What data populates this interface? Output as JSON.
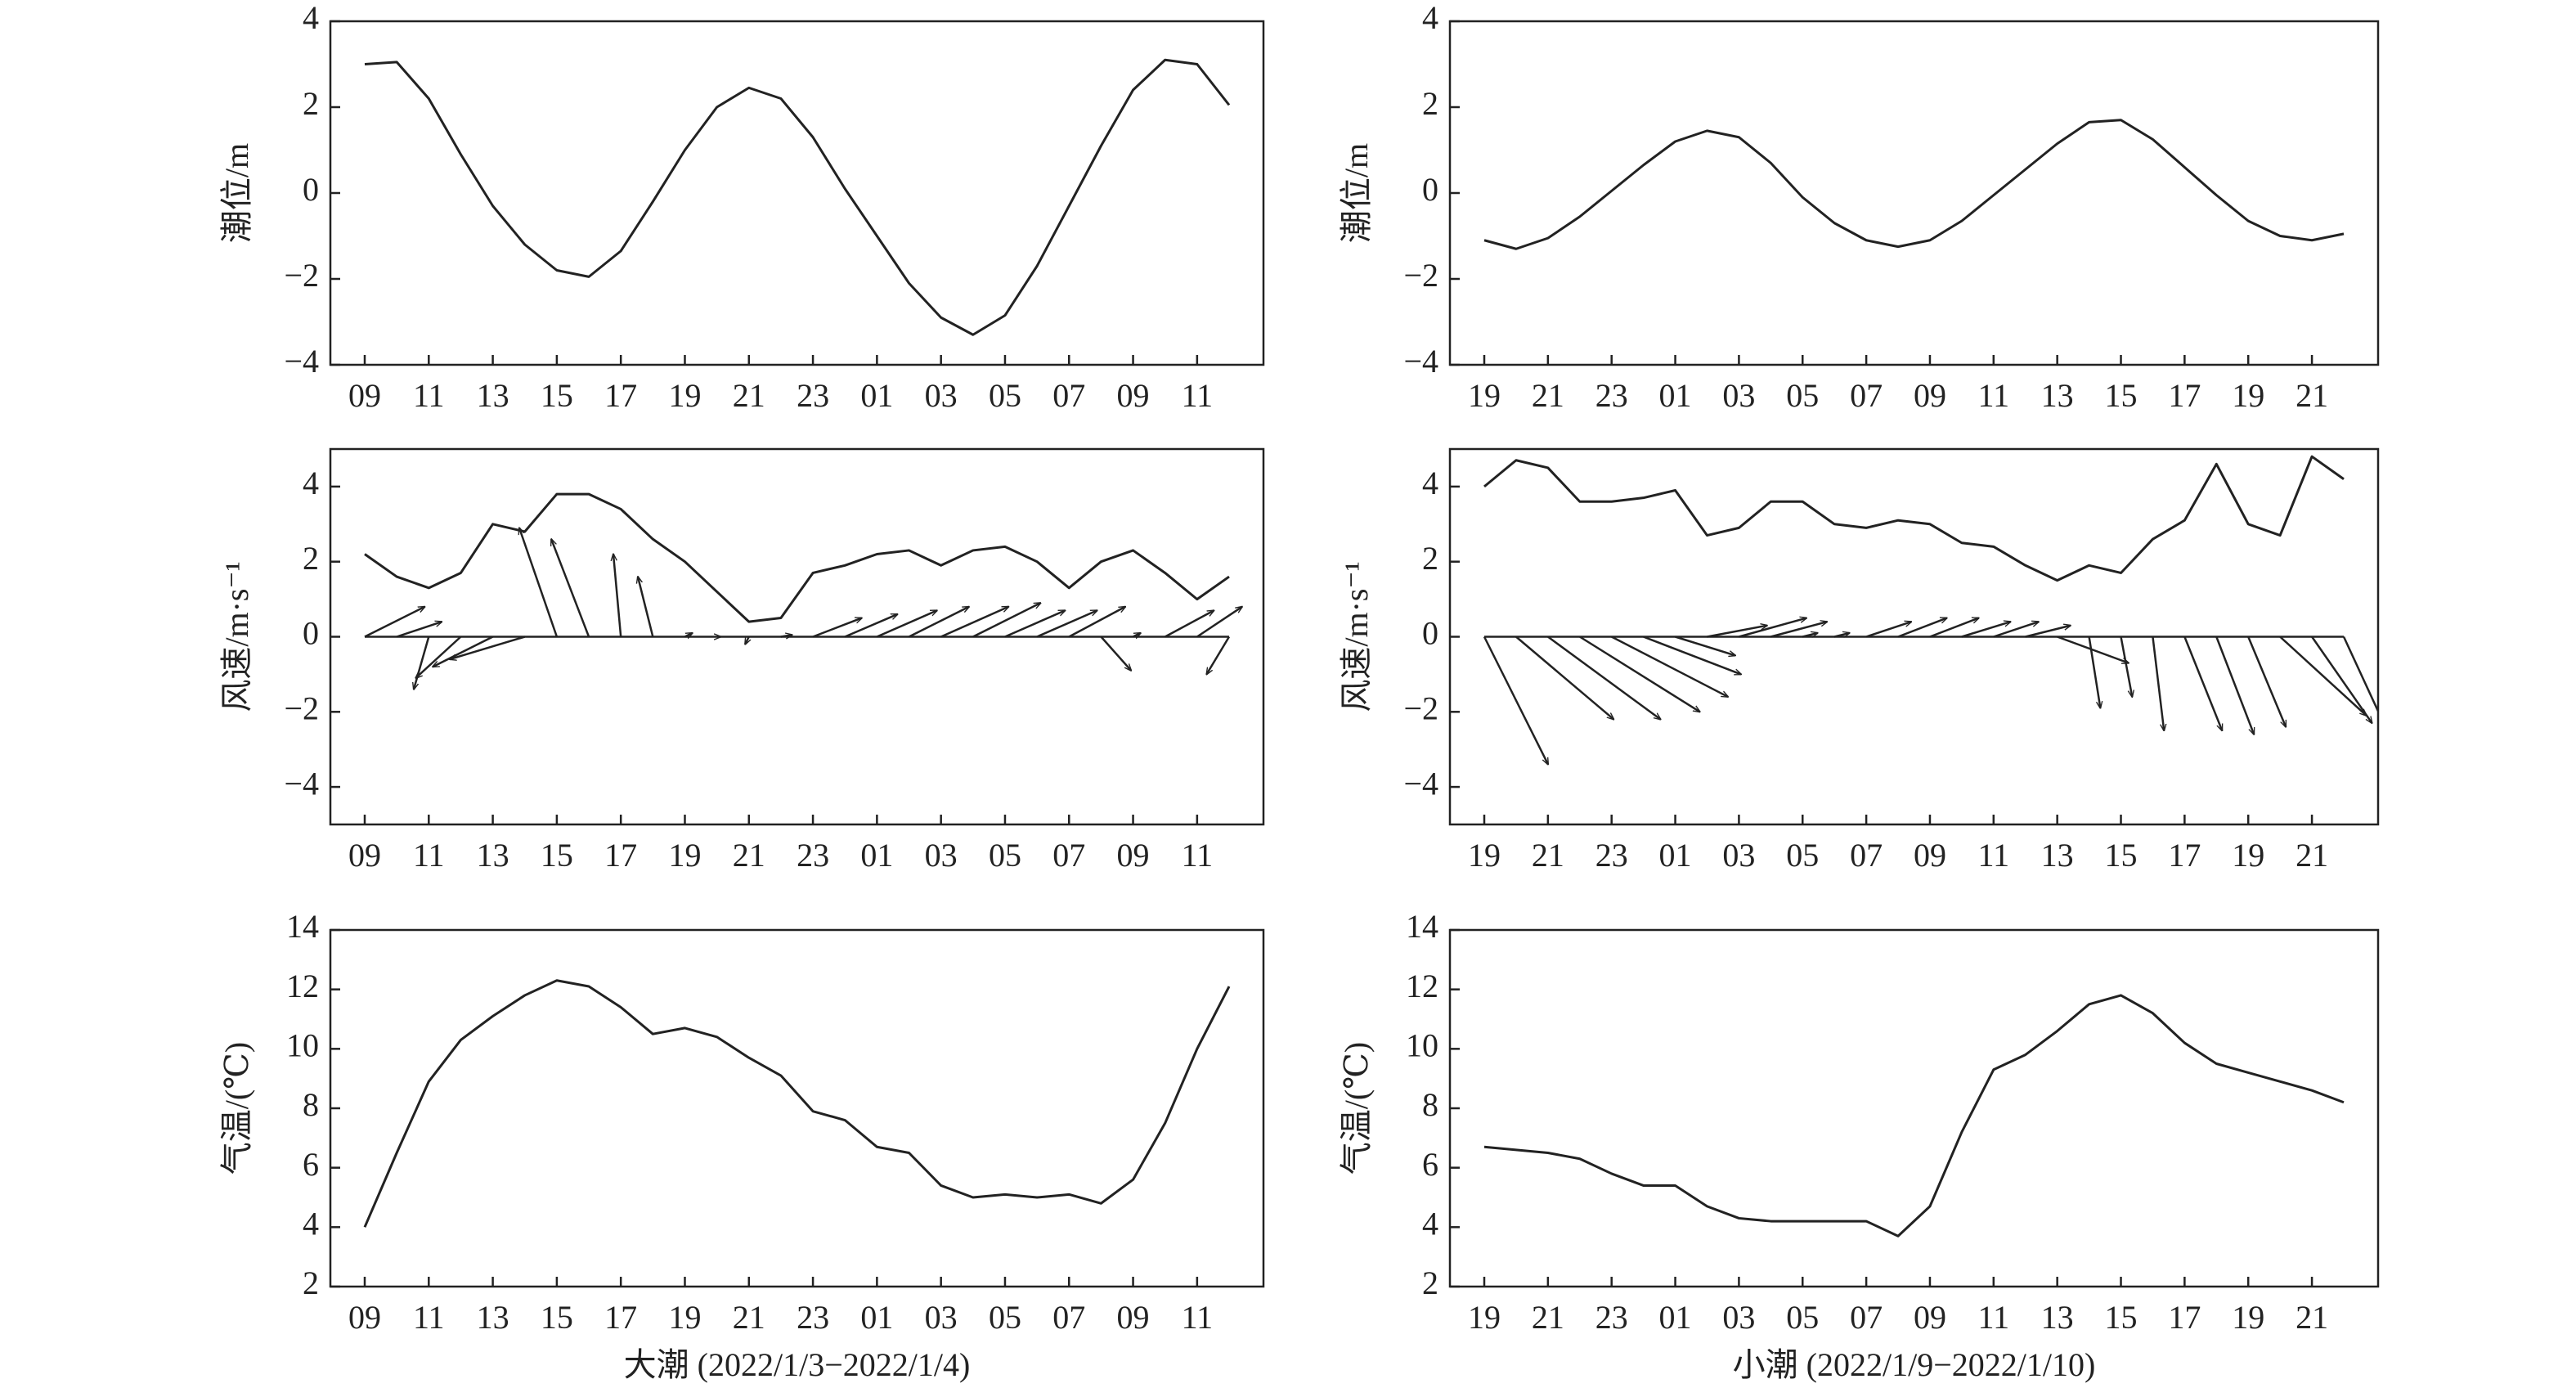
{
  "chart_data": [
    {
      "type": "line",
      "ylabel": "潮位/m",
      "categories": [
        "09",
        null,
        "11",
        null,
        "13",
        null,
        "15",
        null,
        "17",
        null,
        "19",
        null,
        "21",
        null,
        "23",
        null,
        "01",
        null,
        "03",
        null,
        "05",
        null,
        "07",
        null,
        "09",
        null,
        "11",
        null
      ],
      "values": [
        3.0,
        3.05,
        2.2,
        0.9,
        -0.3,
        -1.2,
        -1.8,
        -1.95,
        -1.35,
        -0.2,
        1.0,
        2.0,
        2.45,
        2.2,
        1.3,
        0.1,
        -1.0,
        -2.1,
        -2.9,
        -3.3,
        -2.85,
        -1.7,
        -0.3,
        1.1,
        2.4,
        3.1,
        3.0,
        2.05
      ],
      "color": "#222222",
      "ylim": [
        -4,
        4
      ],
      "yticks": [
        {
          "value": -4,
          "label": "−4"
        },
        {
          "value": -2,
          "label": "−2"
        },
        0,
        2,
        4
      ]
    },
    {
      "type": "line",
      "ylabel": "潮位/m",
      "categories": [
        "19",
        null,
        "21",
        null,
        "23",
        null,
        "01",
        null,
        "03",
        null,
        "05",
        null,
        "07",
        null,
        "09",
        null,
        "11",
        null,
        "13",
        null,
        "15",
        null,
        "17",
        null,
        "19",
        null,
        "21",
        null
      ],
      "values": [
        -1.1,
        -1.3,
        -1.05,
        -0.55,
        0.05,
        0.65,
        1.2,
        1.45,
        1.3,
        0.7,
        -0.1,
        -0.7,
        -1.1,
        -1.25,
        -1.1,
        -0.65,
        -0.05,
        0.55,
        1.15,
        1.65,
        1.7,
        1.25,
        0.6,
        -0.05,
        -0.65,
        -1.0,
        -1.1,
        -0.95
      ],
      "color": "#222222",
      "ylim": [
        -4,
        4
      ],
      "yticks": [
        {
          "value": -4,
          "label": "−4"
        },
        {
          "value": -2,
          "label": "−2"
        },
        0,
        2,
        4
      ]
    },
    {
      "type": "wind",
      "ylabel": "风速/m·s⁻¹",
      "categories": [
        "09",
        null,
        "11",
        null,
        "13",
        null,
        "15",
        null,
        "17",
        null,
        "19",
        null,
        "21",
        null,
        "23",
        null,
        "01",
        null,
        "03",
        null,
        "05",
        null,
        "07",
        null,
        "09",
        null,
        "11",
        null
      ],
      "values": [
        2.2,
        1.6,
        1.3,
        1.7,
        3.0,
        2.8,
        3.8,
        3.8,
        3.4,
        2.6,
        2.0,
        1.2,
        0.4,
        0.5,
        1.7,
        1.9,
        2.2,
        2.3,
        1.9,
        2.3,
        2.4,
        2.0,
        1.3,
        2.0,
        2.3,
        1.7,
        1.0,
        1.6
      ],
      "vectors": {
        "u": [
          1.6,
          1.2,
          -0.4,
          -1.2,
          -1.6,
          -2.0,
          -1.0,
          -1.0,
          -0.2,
          -0.4,
          0.2,
          0.1,
          -0.1,
          0.3,
          1.3,
          1.4,
          1.6,
          1.6,
          1.8,
          1.8,
          1.6,
          1.6,
          1.5,
          0.8,
          0.2,
          1.3,
          1.2,
          -0.6
        ],
        "v": [
          0.8,
          0.4,
          -1.4,
          -1.1,
          -0.8,
          -0.6,
          2.9,
          2.6,
          2.2,
          1.6,
          0.1,
          0.0,
          -0.2,
          0.05,
          0.5,
          0.6,
          0.7,
          0.8,
          0.8,
          0.9,
          0.7,
          0.7,
          0.8,
          -0.9,
          0.1,
          0.7,
          0.8,
          -1.0
        ]
      },
      "color": "#222222",
      "ylim": [
        -5,
        5
      ],
      "yticks": [
        {
          "value": -4,
          "label": "−4"
        },
        {
          "value": -2,
          "label": "−2"
        },
        0,
        2,
        4
      ]
    },
    {
      "type": "wind",
      "ylabel": "风速/m·s⁻¹",
      "categories": [
        "19",
        null,
        "21",
        null,
        "23",
        null,
        "01",
        null,
        "03",
        null,
        "05",
        null,
        "07",
        null,
        "09",
        null,
        "11",
        null,
        "13",
        null,
        "15",
        null,
        "17",
        null,
        "19",
        null,
        "21",
        null
      ],
      "values": [
        4.0,
        4.7,
        4.5,
        3.6,
        3.6,
        3.7,
        3.9,
        2.7,
        2.9,
        3.6,
        3.6,
        3.0,
        2.9,
        3.1,
        3.0,
        2.5,
        2.4,
        1.9,
        1.5,
        1.9,
        1.7,
        2.6,
        3.1,
        4.6,
        3.0,
        2.7,
        4.8,
        4.2
      ],
      "vectors": {
        "u": [
          1.7,
          2.6,
          3.0,
          3.2,
          3.1,
          2.6,
          1.6,
          1.6,
          1.8,
          1.5,
          0.4,
          0.4,
          1.2,
          1.3,
          1.3,
          1.3,
          1.2,
          1.2,
          1.9,
          0.3,
          0.3,
          0.3,
          1.0,
          1.0,
          1.0,
          2.3,
          1.6,
          1.2
        ],
        "v": [
          -3.4,
          -2.2,
          -2.2,
          -2.0,
          -1.6,
          -1.0,
          -0.5,
          0.3,
          0.5,
          0.4,
          0.1,
          0.1,
          0.4,
          0.5,
          0.5,
          0.4,
          0.4,
          0.3,
          -0.7,
          -1.9,
          -1.6,
          -2.5,
          -2.5,
          -2.6,
          -2.4,
          -2.1,
          -2.3,
          -2.6
        ]
      },
      "color": "#222222",
      "ylim": [
        -5,
        5
      ],
      "yticks": [
        {
          "value": -4,
          "label": "−4"
        },
        {
          "value": -2,
          "label": "−2"
        },
        0,
        2,
        4
      ]
    },
    {
      "type": "line",
      "ylabel": "气温/(℃)",
      "xlabel": "大潮 (2022/1/3−2022/1/4)",
      "categories": [
        "09",
        null,
        "11",
        null,
        "13",
        null,
        "15",
        null,
        "17",
        null,
        "19",
        null,
        "21",
        null,
        "23",
        null,
        "01",
        null,
        "03",
        null,
        "05",
        null,
        "07",
        null,
        "09",
        null,
        "11",
        null
      ],
      "values": [
        4.0,
        6.5,
        8.9,
        10.3,
        11.1,
        11.8,
        12.3,
        12.1,
        11.4,
        10.5,
        10.7,
        10.4,
        9.7,
        9.1,
        7.9,
        7.6,
        6.7,
        6.5,
        5.4,
        5.0,
        5.1,
        5.0,
        5.1,
        4.8,
        5.6,
        7.5,
        10.0,
        12.1
      ],
      "color": "#222222",
      "ylim": [
        2,
        14
      ],
      "yticks": [
        2,
        4,
        6,
        8,
        10,
        12,
        14
      ]
    },
    {
      "type": "line",
      "ylabel": "气温/(℃)",
      "xlabel": "小潮 (2022/1/9−2022/1/10)",
      "categories": [
        "19",
        null,
        "21",
        null,
        "23",
        null,
        "01",
        null,
        "03",
        null,
        "05",
        null,
        "07",
        null,
        "09",
        null,
        "11",
        null,
        "13",
        null,
        "15",
        null,
        "17",
        null,
        "19",
        null,
        "21",
        null
      ],
      "values": [
        6.7,
        6.6,
        6.5,
        6.3,
        5.8,
        5.4,
        5.4,
        4.7,
        4.3,
        4.2,
        4.2,
        4.2,
        4.2,
        3.7,
        4.7,
        7.2,
        9.3,
        9.8,
        10.6,
        11.5,
        11.8,
        11.2,
        10.2,
        9.5,
        9.2,
        8.9,
        8.6,
        8.2
      ],
      "color": "#222222",
      "ylim": [
        2,
        14
      ],
      "yticks": [
        2,
        4,
        6,
        8,
        10,
        12,
        14
      ]
    }
  ]
}
